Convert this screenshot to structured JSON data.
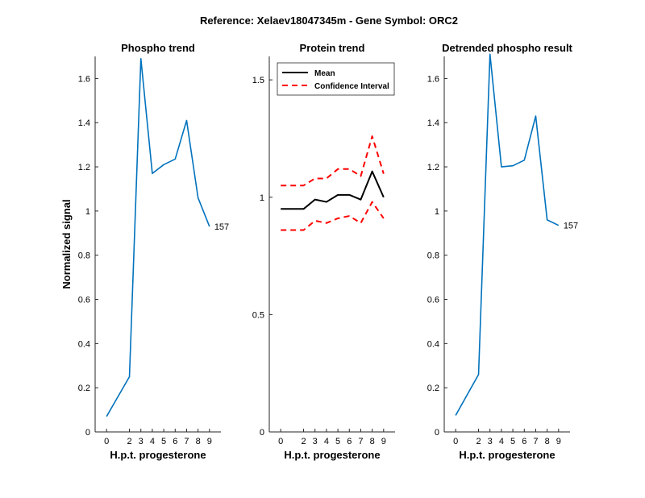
{
  "suptitle": "Reference:  Xelaev18047345m - Gene Symbol:  ORC2",
  "colors": {
    "phospho": "#0072BD",
    "mean": "#000000",
    "ci": "#FF0000"
  },
  "chart_data": [
    {
      "type": "line",
      "title": "Phospho trend",
      "xlabel": "H.p.t. progesterone",
      "ylabel": "Normalized signal",
      "x": [
        0,
        2,
        3,
        4,
        5,
        6,
        7,
        8,
        9
      ],
      "xticklabels": [
        "0",
        "2",
        "3",
        "4",
        "5",
        "6",
        "7",
        "8",
        "9"
      ],
      "xlim": [
        -1,
        10
      ],
      "ylim": [
        0,
        1.7
      ],
      "yticks": [
        0,
        0.2,
        0.4,
        0.6,
        0.8,
        1,
        1.2,
        1.4,
        1.6
      ],
      "series": [
        {
          "values": [
            0.07,
            0.25,
            1.69,
            1.17,
            1.21,
            1.235,
            1.41,
            1.06,
            0.93
          ],
          "color": "#0072BD"
        }
      ],
      "annotation": "157"
    },
    {
      "type": "line",
      "title": "Protein trend",
      "xlabel": "H.p.t. progesterone",
      "ylabel": "",
      "x": [
        0,
        2,
        3,
        4,
        5,
        6,
        7,
        8,
        9
      ],
      "xticklabels": [
        "0",
        "2",
        "3",
        "4",
        "5",
        "6",
        "7",
        "8",
        "9"
      ],
      "xlim": [
        -1,
        10
      ],
      "ylim": [
        0,
        1.6
      ],
      "yticks": [
        0,
        0.5,
        1,
        1.5
      ],
      "legend_position": "top-left",
      "series": [
        {
          "name": "Mean",
          "values": [
            0.95,
            0.95,
            0.99,
            0.98,
            1.01,
            1.01,
            0.99,
            1.11,
            1.0
          ],
          "color": "#000000",
          "style": "solid"
        },
        {
          "name": "Confidence Interval",
          "values": [
            1.05,
            1.05,
            1.08,
            1.08,
            1.12,
            1.12,
            1.09,
            1.26,
            1.1
          ],
          "color": "#FF0000",
          "style": "dashed"
        },
        {
          "values": [
            0.86,
            0.86,
            0.9,
            0.89,
            0.91,
            0.92,
            0.89,
            0.98,
            0.91
          ],
          "color": "#FF0000",
          "style": "dashed"
        }
      ]
    },
    {
      "type": "line",
      "title": "Detrended phospho result",
      "xlabel": "H.p.t. progesterone",
      "ylabel": "",
      "x": [
        0,
        2,
        3,
        4,
        5,
        6,
        7,
        8,
        9
      ],
      "xticklabels": [
        "0",
        "2",
        "3",
        "4",
        "5",
        "6",
        "7",
        "8",
        "9"
      ],
      "xlim": [
        -1,
        10
      ],
      "ylim": [
        0,
        1.7
      ],
      "yticks": [
        0,
        0.2,
        0.4,
        0.6,
        0.8,
        1,
        1.2,
        1.4,
        1.6
      ],
      "series": [
        {
          "values": [
            0.075,
            0.26,
            1.71,
            1.2,
            1.205,
            1.23,
            1.43,
            0.96,
            0.935
          ],
          "color": "#0072BD"
        }
      ],
      "annotation": "157"
    }
  ]
}
